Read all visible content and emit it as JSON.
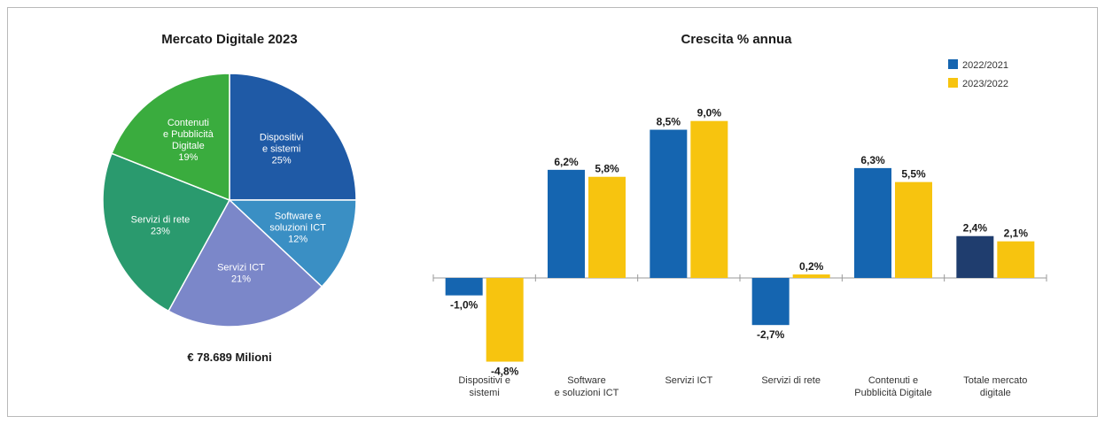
{
  "chart_data": [
    {
      "type": "pie",
      "title": "Mercato Digitale 2023",
      "slices": [
        {
          "label_lines": [
            "Dispositivi",
            "e sistemi"
          ],
          "value_label": "25%",
          "value": 25,
          "color": "#1f5aa6"
        },
        {
          "label_lines": [
            "Software e",
            "soluzioni ICT"
          ],
          "value_label": "12%",
          "value": 12,
          "color": "#3a8fc4"
        },
        {
          "label_lines": [
            "Servizi ICT"
          ],
          "value_label": "21%",
          "value": 21,
          "color": "#7b87c9"
        },
        {
          "label_lines": [
            "Servizi di rete"
          ],
          "value_label": "23%",
          "value": 23,
          "color": "#2a9a6e"
        },
        {
          "label_lines": [
            "Contenuti",
            "e Pubblicità",
            "Digitale"
          ],
          "value_label": "19%",
          "value": 19,
          "color": "#3aac3e"
        }
      ],
      "total": "€ 78.689 Milioni"
    },
    {
      "type": "bar",
      "title": "Crescita % annua",
      "categories": [
        [
          "Dispositivi e",
          "sistemi"
        ],
        [
          "Software",
          "e soluzioni ICT"
        ],
        [
          "Servizi ICT"
        ],
        [
          "Servizi di rete"
        ],
        [
          "Contenuti e",
          "Pubblicità Digitale"
        ],
        [
          "Totale mercato",
          "digitale"
        ]
      ],
      "series": [
        {
          "name": "2022/2021",
          "values": [
            -1.0,
            6.2,
            8.5,
            -2.7,
            6.3,
            2.4
          ],
          "labels": [
            "-1,0%",
            "6,2%",
            "8,5%",
            "-2,7%",
            "6,3%",
            "2,4%"
          ],
          "color": "#1565b0"
        },
        {
          "name": "2023/2022",
          "values": [
            -4.8,
            5.8,
            9.0,
            0.2,
            5.5,
            2.1
          ],
          "labels": [
            "-4,8%",
            "5,8%",
            "9,0%",
            "0,2%",
            "5,5%",
            "2,1%"
          ],
          "color": "#f7c40f"
        }
      ],
      "highlight_color": "#1f3d6e",
      "legend_position": "top-right",
      "ylim": [
        -5.5,
        10
      ]
    }
  ]
}
